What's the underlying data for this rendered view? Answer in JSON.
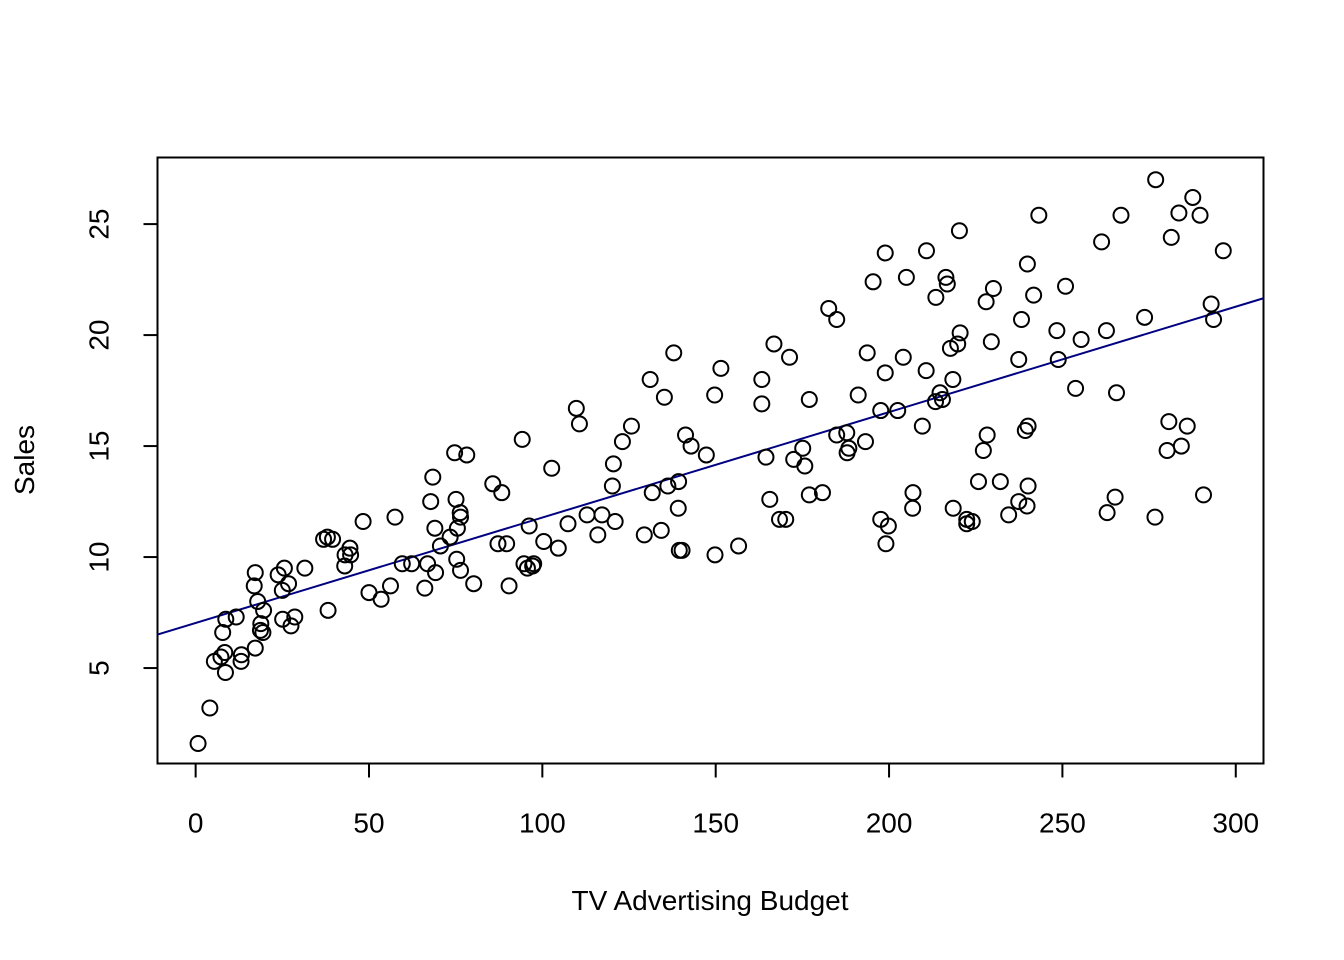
{
  "chart_data": {
    "type": "scatter",
    "title": "",
    "xlabel": "TV Advertising Budget",
    "ylabel": "Sales",
    "xlim": [
      -11,
      308
    ],
    "ylim": [
      0.7,
      28.0
    ],
    "xticks": [
      0,
      50,
      100,
      150,
      200,
      250,
      300
    ],
    "yticks": [
      5,
      10,
      15,
      20,
      25
    ],
    "grid": false,
    "legend": "none",
    "colors": {
      "points": "#000000",
      "fit_line": "#000080",
      "frame": "#000000"
    },
    "point_style": "open-circle",
    "fit_line": {
      "intercept": 7.03,
      "slope": 0.0475
    },
    "points": [
      [
        0.7,
        1.6
      ],
      [
        4.1,
        3.2
      ],
      [
        5.4,
        5.3
      ],
      [
        7.3,
        5.5
      ],
      [
        7.8,
        6.6
      ],
      [
        8.4,
        5.7
      ],
      [
        8.6,
        4.8
      ],
      [
        8.7,
        7.2
      ],
      [
        11.7,
        7.3
      ],
      [
        13.1,
        5.3
      ],
      [
        13.2,
        5.6
      ],
      [
        16.9,
        8.7
      ],
      [
        17.2,
        9.3
      ],
      [
        17.2,
        5.9
      ],
      [
        17.9,
        8.0
      ],
      [
        18.7,
        6.7
      ],
      [
        18.8,
        7.0
      ],
      [
        19.4,
        6.6
      ],
      [
        19.6,
        7.6
      ],
      [
        23.8,
        9.2
      ],
      [
        25.0,
        8.5
      ],
      [
        25.1,
        7.2
      ],
      [
        25.6,
        9.5
      ],
      [
        26.8,
        8.8
      ],
      [
        27.5,
        6.9
      ],
      [
        28.6,
        7.3
      ],
      [
        31.5,
        9.5
      ],
      [
        36.9,
        10.8
      ],
      [
        38.0,
        10.9
      ],
      [
        38.2,
        7.6
      ],
      [
        39.5,
        10.8
      ],
      [
        43.0,
        9.6
      ],
      [
        43.1,
        10.1
      ],
      [
        44.5,
        10.4
      ],
      [
        44.7,
        10.1
      ],
      [
        48.3,
        11.6
      ],
      [
        50.0,
        8.4
      ],
      [
        53.5,
        8.1
      ],
      [
        56.2,
        8.7
      ],
      [
        57.5,
        11.8
      ],
      [
        59.6,
        9.7
      ],
      [
        62.3,
        9.7
      ],
      [
        66.1,
        8.6
      ],
      [
        66.9,
        9.7
      ],
      [
        67.8,
        12.5
      ],
      [
        68.4,
        13.6
      ],
      [
        69.0,
        11.3
      ],
      [
        69.2,
        9.3
      ],
      [
        70.6,
        10.5
      ],
      [
        73.4,
        10.9
      ],
      [
        74.7,
        14.7
      ],
      [
        75.1,
        12.6
      ],
      [
        75.3,
        9.9
      ],
      [
        75.5,
        11.3
      ],
      [
        76.3,
        12.0
      ],
      [
        76.4,
        11.8
      ],
      [
        76.4,
        9.4
      ],
      [
        78.2,
        14.6
      ],
      [
        80.2,
        8.8
      ],
      [
        85.7,
        13.3
      ],
      [
        87.2,
        10.6
      ],
      [
        88.3,
        12.9
      ],
      [
        89.7,
        10.6
      ],
      [
        90.4,
        8.7
      ],
      [
        94.2,
        15.3
      ],
      [
        94.7,
        9.7
      ],
      [
        95.7,
        9.5
      ],
      [
        96.2,
        11.4
      ],
      [
        97.2,
        9.6
      ],
      [
        97.5,
        9.7
      ],
      [
        100.4,
        10.7
      ],
      [
        102.7,
        14.0
      ],
      [
        104.6,
        10.4
      ],
      [
        107.4,
        11.5
      ],
      [
        109.8,
        16.7
      ],
      [
        110.7,
        16.0
      ],
      [
        112.9,
        11.9
      ],
      [
        116.0,
        11.0
      ],
      [
        117.2,
        11.9
      ],
      [
        120.2,
        13.2
      ],
      [
        120.5,
        14.2
      ],
      [
        121.0,
        11.6
      ],
      [
        123.1,
        15.2
      ],
      [
        125.7,
        15.9
      ],
      [
        129.4,
        11.0
      ],
      [
        131.1,
        18.0
      ],
      [
        131.7,
        12.9
      ],
      [
        134.3,
        11.2
      ],
      [
        135.2,
        17.2
      ],
      [
        136.2,
        13.2
      ],
      [
        137.9,
        19.2
      ],
      [
        139.2,
        12.2
      ],
      [
        139.3,
        13.4
      ],
      [
        139.5,
        10.3
      ],
      [
        140.3,
        10.3
      ],
      [
        141.3,
        15.5
      ],
      [
        142.9,
        15.0
      ],
      [
        147.3,
        14.6
      ],
      [
        149.7,
        17.3
      ],
      [
        149.8,
        10.1
      ],
      [
        151.5,
        18.5
      ],
      [
        156.6,
        10.5
      ],
      [
        163.3,
        18.0
      ],
      [
        163.3,
        16.9
      ],
      [
        164.5,
        14.5
      ],
      [
        165.6,
        12.6
      ],
      [
        166.8,
        19.6
      ],
      [
        168.4,
        11.7
      ],
      [
        170.2,
        11.7
      ],
      [
        171.3,
        19.0
      ],
      [
        172.5,
        14.4
      ],
      [
        175.1,
        14.9
      ],
      [
        175.7,
        14.1
      ],
      [
        177.0,
        12.8
      ],
      [
        177.0,
        17.1
      ],
      [
        180.8,
        12.9
      ],
      [
        182.6,
        21.2
      ],
      [
        184.9,
        20.7
      ],
      [
        184.9,
        15.5
      ],
      [
        187.8,
        15.6
      ],
      [
        187.9,
        14.7
      ],
      [
        188.4,
        14.9
      ],
      [
        191.1,
        17.3
      ],
      [
        193.2,
        15.2
      ],
      [
        193.7,
        19.2
      ],
      [
        195.4,
        22.4
      ],
      [
        197.6,
        16.6
      ],
      [
        197.6,
        11.7
      ],
      [
        198.9,
        18.3
      ],
      [
        198.9,
        23.7
      ],
      [
        199.1,
        10.6
      ],
      [
        199.8,
        11.4
      ],
      [
        202.5,
        16.6
      ],
      [
        204.1,
        19.0
      ],
      [
        205.0,
        22.6
      ],
      [
        206.8,
        12.2
      ],
      [
        206.9,
        12.9
      ],
      [
        209.6,
        15.9
      ],
      [
        210.7,
        18.4
      ],
      [
        210.8,
        23.8
      ],
      [
        213.4,
        17.0
      ],
      [
        213.5,
        21.7
      ],
      [
        214.7,
        17.4
      ],
      [
        215.4,
        17.1
      ],
      [
        216.4,
        22.6
      ],
      [
        216.8,
        22.3
      ],
      [
        217.7,
        19.4
      ],
      [
        218.4,
        18.0
      ],
      [
        218.5,
        12.2
      ],
      [
        219.8,
        19.6
      ],
      [
        220.3,
        24.7
      ],
      [
        220.5,
        20.1
      ],
      [
        222.4,
        11.7
      ],
      [
        222.4,
        11.5
      ],
      [
        224.0,
        11.6
      ],
      [
        225.8,
        13.4
      ],
      [
        227.2,
        14.8
      ],
      [
        228.0,
        21.5
      ],
      [
        228.3,
        15.5
      ],
      [
        229.5,
        19.7
      ],
      [
        230.1,
        22.1
      ],
      [
        232.1,
        13.4
      ],
      [
        234.5,
        11.9
      ],
      [
        237.4,
        12.5
      ],
      [
        237.4,
        18.9
      ],
      [
        238.2,
        20.7
      ],
      [
        239.3,
        15.7
      ],
      [
        239.8,
        12.3
      ],
      [
        239.9,
        23.2
      ],
      [
        240.1,
        13.2
      ],
      [
        240.1,
        15.9
      ],
      [
        241.7,
        21.8
      ],
      [
        243.2,
        25.4
      ],
      [
        248.4,
        20.2
      ],
      [
        248.8,
        18.9
      ],
      [
        250.9,
        22.2
      ],
      [
        253.8,
        17.6
      ],
      [
        255.4,
        19.8
      ],
      [
        261.3,
        24.2
      ],
      [
        262.7,
        20.2
      ],
      [
        262.9,
        12.0
      ],
      [
        265.2,
        12.7
      ],
      [
        265.6,
        17.4
      ],
      [
        266.9,
        25.4
      ],
      [
        273.7,
        20.8
      ],
      [
        276.7,
        11.8
      ],
      [
        276.9,
        27.0
      ],
      [
        280.2,
        14.8
      ],
      [
        280.7,
        16.1
      ],
      [
        281.4,
        24.4
      ],
      [
        283.6,
        25.5
      ],
      [
        284.3,
        15.0
      ],
      [
        286.0,
        15.9
      ],
      [
        287.6,
        26.2
      ],
      [
        289.7,
        25.4
      ],
      [
        290.7,
        12.8
      ],
      [
        292.9,
        21.4
      ],
      [
        293.6,
        20.7
      ],
      [
        296.4,
        23.8
      ]
    ]
  }
}
